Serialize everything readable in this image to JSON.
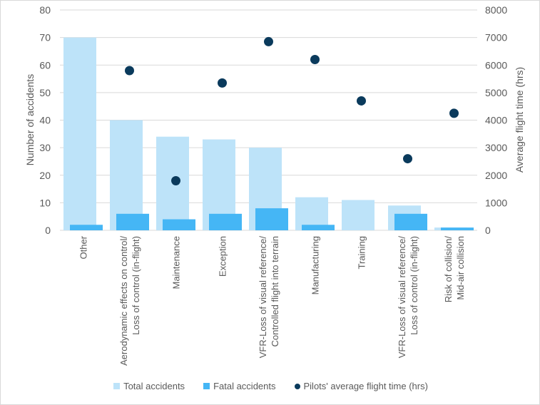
{
  "chart_data": {
    "type": "bar",
    "title": "",
    "categories": [
      [
        "Other"
      ],
      [
        "Aerodynamic effects on control/",
        "Loss of control (in-flight)"
      ],
      [
        "Maintenance"
      ],
      [
        "Exception"
      ],
      [
        "VFR-Loss of visual reference/",
        "Controlled flight into terrain"
      ],
      [
        "Manufacturing"
      ],
      [
        "Training"
      ],
      [
        "VFR-Loss of visual reference/",
        "Loss of control (in-flight)"
      ],
      [
        "Risk of collision/",
        "Mid-air collision"
      ]
    ],
    "series": [
      {
        "name": "Total accidents",
        "type": "bar",
        "axis": "left",
        "color": "#BDE3F9",
        "values": [
          70,
          40,
          34,
          33,
          30,
          12,
          11,
          9,
          1
        ]
      },
      {
        "name": "Fatal accidents",
        "type": "bar",
        "axis": "left",
        "color": "#45B6F5",
        "values": [
          2,
          6,
          4,
          6,
          8,
          2,
          0,
          6,
          1
        ]
      },
      {
        "name": "Pilots' average flight time (hrs)",
        "type": "scatter",
        "axis": "right",
        "color": "#0A3A5C",
        "values": [
          null,
          5800,
          1800,
          5350,
          6850,
          6200,
          4700,
          2600,
          4250
        ]
      }
    ],
    "ylabel": "Number of accidents",
    "ylim": [
      0,
      80
    ],
    "yticks": [
      0,
      10,
      20,
      30,
      40,
      50,
      60,
      70,
      80
    ],
    "y2label": "Average flight time (hrs)",
    "y2lim": [
      0,
      8000
    ],
    "y2ticks": [
      0,
      1000,
      2000,
      3000,
      4000,
      5000,
      6000,
      7000,
      8000
    ],
    "grid": true,
    "legend_position": "bottom"
  }
}
